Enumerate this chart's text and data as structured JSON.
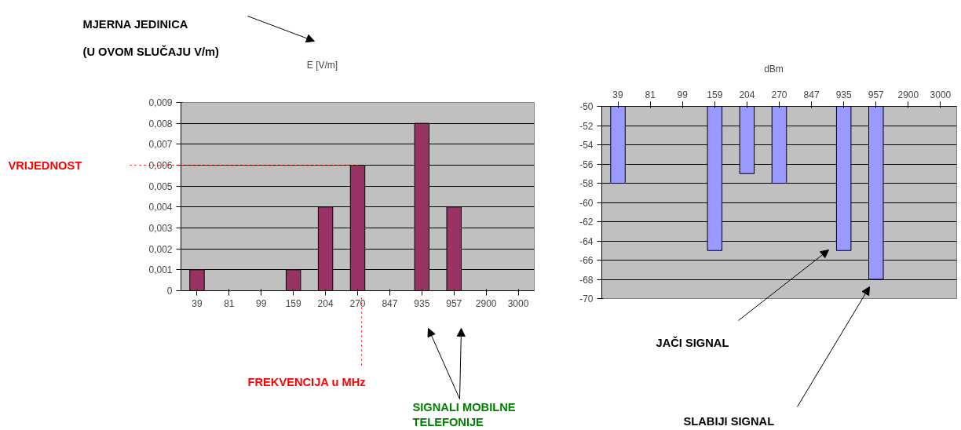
{
  "chart_data": [
    {
      "type": "bar",
      "title": "E [V/m]",
      "categories": [
        "39",
        "81",
        "99",
        "159",
        "204",
        "270",
        "847",
        "935",
        "957",
        "2900",
        "3000"
      ],
      "values": [
        0.001,
        0,
        0,
        0.001,
        0.004,
        0.006,
        0,
        0.008,
        0.004,
        0,
        0
      ],
      "color": "#993366",
      "ylim": [
        0,
        0.009
      ],
      "yticks": [
        {
          "value": 0,
          "label": "0"
        },
        {
          "value": 0.001,
          "label": "0,001"
        },
        {
          "value": 0.002,
          "label": "0,002"
        },
        {
          "value": 0.003,
          "label": "0,003"
        },
        {
          "value": 0.004,
          "label": "0,004"
        },
        {
          "value": 0.005,
          "label": "0,005"
        },
        {
          "value": 0.006,
          "label": "0,006"
        },
        {
          "value": 0.007,
          "label": "0,007"
        },
        {
          "value": 0.008,
          "label": "0,008"
        },
        {
          "value": 0.009,
          "label": "0,009"
        }
      ],
      "grid": "y",
      "ref_lines": [
        {
          "axis": "y",
          "value": 0.006,
          "label": "VRIJEDNOST",
          "color": "#ff0000",
          "line_style": "dotted"
        }
      ],
      "annotations": [
        "MJERNA JEDINICA",
        "(U OVOM SLUČAJU V/m)",
        "FREKVENCIJA u MHz",
        "SIGNALI MOBILNE\nTELEFONIJE"
      ]
    },
    {
      "type": "bar",
      "title": "dBm",
      "categories": [
        "39",
        "81",
        "99",
        "159",
        "204",
        "270",
        "847",
        "935",
        "957",
        "2900",
        "3000"
      ],
      "values": [
        -58,
        null,
        null,
        -65,
        -57,
        -58,
        null,
        -65,
        -68,
        null,
        null
      ],
      "color": "#9999ff",
      "ylim": [
        -70,
        -50
      ],
      "yticks": [
        -70,
        -68,
        -66,
        -64,
        -62,
        -60,
        -58,
        -56,
        -54,
        -52,
        -50
      ],
      "grid": "y",
      "annotations": [
        "JAČI SIGNAL",
        "SLABIJI SIGNAL"
      ]
    }
  ]
}
